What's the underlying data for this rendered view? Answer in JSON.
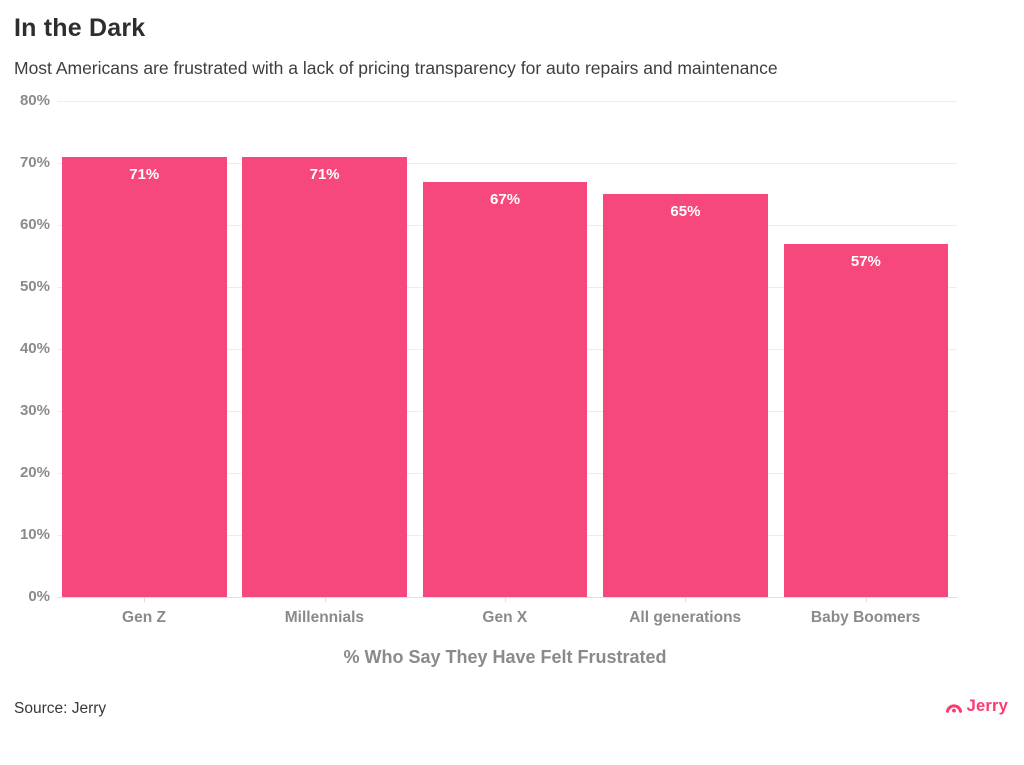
{
  "header": {
    "title": "In the Dark",
    "subtitle": "Most Americans are frustrated with a lack of pricing transparency for auto repairs and maintenance"
  },
  "footer": {
    "source": "Source: Jerry",
    "brand": "Jerry"
  },
  "icons": {
    "brand_mark": "jerry-arc-icon"
  },
  "colors": {
    "bar": "#f7487e",
    "logo": "#fb3a6f",
    "grid": "#ededed",
    "axis_line": "#e0e0e0",
    "tick_label": "#8a8a8a",
    "title": "#2e2e2e",
    "subtitle": "#3e3e3e",
    "value_label": "#ffffff"
  },
  "chart_data": {
    "type": "bar",
    "title": "In the Dark",
    "subtitle": "Most Americans are frustrated with a lack of pricing transparency for auto repairs and maintenance",
    "categories": [
      "Gen Z",
      "Millennials",
      "Gen X",
      "All generations",
      "Baby Boomers"
    ],
    "values": [
      71,
      71,
      67,
      65,
      57
    ],
    "value_labels": [
      "71%",
      "71%",
      "67%",
      "65%",
      "57%"
    ],
    "xlabel": "% Who Say They Have Felt Frustrated",
    "ylabel": "",
    "ylim": [
      0,
      80
    ],
    "ytick_step": 10,
    "ytick_labels": [
      "0%",
      "10%",
      "20%",
      "30%",
      "40%",
      "50%",
      "60%",
      "70%",
      "80%"
    ],
    "grid": "horizontal",
    "legend": "none",
    "bar_color": "#f7487e"
  }
}
